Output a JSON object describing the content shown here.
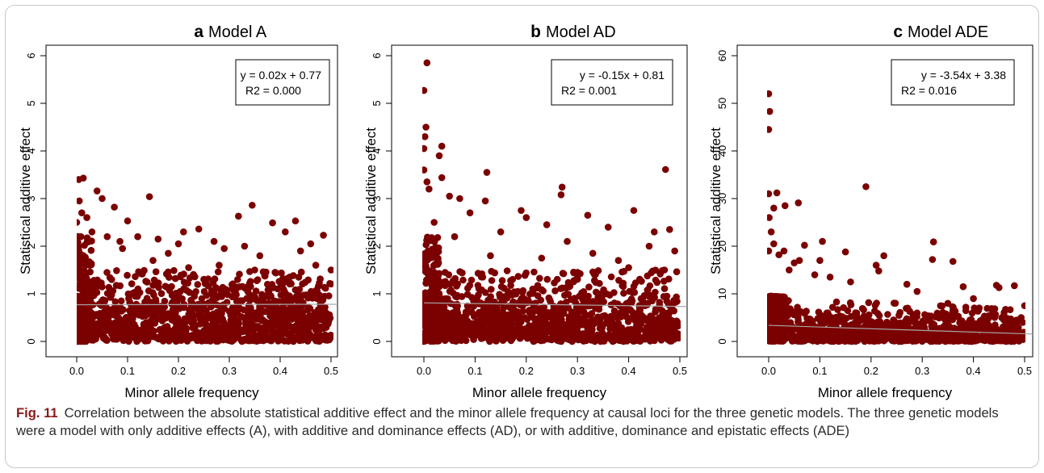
{
  "figure": {
    "caption_label": "Fig. 11",
    "caption_text": "Correlation between the absolute statistical additive effect and the minor allele frequency at causal loci for the three genetic models. The three genetic models were a model with only additive effects (A), with additive and dominance effects (AD), or with additive, dominance and epistatic effects (ADE)"
  },
  "colors": {
    "points": "#7b0000",
    "regression_line": "#a8a8a8",
    "axis": "#000000",
    "caption_label": "#8b1a1a"
  },
  "chart_data": [
    {
      "type": "scatter",
      "panel_letter": "a",
      "title": "Model A",
      "xlabel": "Minor allele frequency",
      "ylabel": "Statistical additive effect",
      "xlim": [
        0,
        0.5
      ],
      "ylim": [
        0,
        6
      ],
      "x_ticks": [
        "0.0",
        "0.1",
        "0.2",
        "0.3",
        "0.4",
        "0.5"
      ],
      "y_ticks": [
        "0",
        "1",
        "2",
        "3",
        "4",
        "5",
        "6"
      ],
      "regression": {
        "slope": 0.02,
        "intercept": 0.77
      },
      "annotation_line1": "y = 0.02x + 0.77",
      "annotation_line2": "R2 = 0.000",
      "points": [
        [
          0.004,
          3.4
        ],
        [
          0.013,
          3.43
        ],
        [
          0.04,
          3.16
        ],
        [
          0.05,
          3.0
        ],
        [
          0.143,
          3.04
        ],
        [
          0.345,
          2.86
        ],
        [
          0.318,
          2.63
        ],
        [
          0.385,
          2.49
        ],
        [
          0.43,
          2.53
        ],
        [
          0.485,
          2.23
        ],
        [
          0.46,
          2.05
        ],
        [
          0.074,
          2.82
        ],
        [
          0.1,
          2.53
        ],
        [
          0.24,
          2.36
        ],
        [
          0.27,
          2.1
        ],
        [
          0.005,
          2.95
        ],
        [
          0.01,
          2.7
        ],
        [
          0.02,
          2.6
        ],
        [
          0.0,
          2.5
        ],
        [
          0.03,
          2.3
        ],
        [
          0.06,
          2.2
        ],
        [
          0.085,
          2.1
        ],
        [
          0.12,
          2.2
        ],
        [
          0.16,
          2.15
        ],
        [
          0.2,
          2.05
        ],
        [
          0.21,
          2.3
        ],
        [
          0.29,
          1.95
        ],
        [
          0.33,
          2.0
        ],
        [
          0.41,
          2.3
        ],
        [
          0.44,
          1.9
        ],
        [
          0.36,
          1.8
        ],
        [
          0.18,
          1.85
        ],
        [
          0.09,
          1.95
        ],
        [
          0.15,
          1.7
        ],
        [
          0.28,
          1.6
        ],
        [
          0.35,
          1.5
        ],
        [
          0.47,
          1.6
        ],
        [
          0.5,
          1.5
        ],
        [
          0.39,
          1.45
        ],
        [
          0.22,
          1.55
        ]
      ]
    },
    {
      "type": "scatter",
      "panel_letter": "b",
      "title": "Model AD",
      "xlabel": "Minor allele frequency",
      "ylabel": "Statistical additive effect",
      "xlim": [
        0,
        0.5
      ],
      "ylim": [
        0,
        6
      ],
      "x_ticks": [
        "0.0",
        "0.1",
        "0.2",
        "0.3",
        "0.4",
        "0.5"
      ],
      "y_ticks": [
        "0",
        "1",
        "2",
        "3",
        "4",
        "5",
        "6"
      ],
      "regression": {
        "slope": -0.15,
        "intercept": 0.81
      },
      "annotation_line1": "y = -0.15x + 0.81",
      "annotation_line2": "R2 = 0.001",
      "points": [
        [
          0.006,
          5.85
        ],
        [
          0.0,
          5.27
        ],
        [
          0.004,
          4.5
        ],
        [
          0.002,
          4.3
        ],
        [
          0.0,
          4.05
        ],
        [
          0.035,
          4.1
        ],
        [
          0.03,
          3.9
        ],
        [
          0.472,
          3.61
        ],
        [
          0.123,
          3.55
        ],
        [
          0.27,
          3.24
        ],
        [
          0.268,
          3.08
        ],
        [
          0.035,
          3.44
        ],
        [
          0.0,
          3.6
        ],
        [
          0.006,
          3.35
        ],
        [
          0.01,
          3.2
        ],
        [
          0.05,
          3.05
        ],
        [
          0.07,
          3.0
        ],
        [
          0.12,
          2.95
        ],
        [
          0.19,
          2.75
        ],
        [
          0.32,
          2.65
        ],
        [
          0.41,
          2.75
        ],
        [
          0.48,
          2.35
        ],
        [
          0.45,
          2.3
        ],
        [
          0.36,
          2.4
        ],
        [
          0.24,
          2.45
        ],
        [
          0.2,
          2.6
        ],
        [
          0.09,
          2.7
        ],
        [
          0.15,
          2.3
        ],
        [
          0.28,
          2.1
        ],
        [
          0.44,
          2.0
        ],
        [
          0.49,
          1.9
        ],
        [
          0.33,
          1.85
        ],
        [
          0.38,
          1.7
        ],
        [
          0.13,
          1.8
        ],
        [
          0.23,
          1.75
        ],
        [
          0.06,
          2.2
        ],
        [
          0.02,
          2.5
        ],
        [
          0.47,
          1.5
        ],
        [
          0.4,
          1.55
        ],
        [
          0.3,
          1.45
        ]
      ]
    },
    {
      "type": "scatter",
      "panel_letter": "c",
      "title": "Model ADE",
      "xlabel": "Minor allele frequency",
      "ylabel": "Statistical additive effect",
      "xlim": [
        0,
        0.5
      ],
      "ylim": [
        0,
        60
      ],
      "x_ticks": [
        "0.0",
        "0.1",
        "0.2",
        "0.3",
        "0.4",
        "0.5"
      ],
      "y_ticks": [
        "0",
        "10",
        "20",
        "30",
        "40",
        "50",
        "60"
      ],
      "regression": {
        "slope": -3.54,
        "intercept": 3.38
      },
      "annotation_line1": "y = -3.54x + 3.38",
      "annotation_line2": "R2 = 0.016",
      "points": [
        [
          0.0,
          52.0
        ],
        [
          0.002,
          48.3
        ],
        [
          0.0,
          44.5
        ],
        [
          0.19,
          32.5
        ],
        [
          0.0,
          31.0
        ],
        [
          0.016,
          31.2
        ],
        [
          0.058,
          29.1
        ],
        [
          0.01,
          28.0
        ],
        [
          0.032,
          28.5
        ],
        [
          0.001,
          26.0
        ],
        [
          0.005,
          23.0
        ],
        [
          0.01,
          20.5
        ],
        [
          0.322,
          20.9
        ],
        [
          0.225,
          18.0
        ],
        [
          0.32,
          17.2
        ],
        [
          0.36,
          16.8
        ],
        [
          0.21,
          16.0
        ],
        [
          0.215,
          14.8
        ],
        [
          0.105,
          21.0
        ],
        [
          0.07,
          20.2
        ],
        [
          0.1,
          17.0
        ],
        [
          0.15,
          18.8
        ],
        [
          0.06,
          17.0
        ],
        [
          0.05,
          16.5
        ],
        [
          0.03,
          19.0
        ],
        [
          0.0,
          19.0
        ],
        [
          0.02,
          18.2
        ],
        [
          0.04,
          15.0
        ],
        [
          0.09,
          14.0
        ],
        [
          0.12,
          13.5
        ],
        [
          0.16,
          12.5
        ],
        [
          0.445,
          11.8
        ],
        [
          0.45,
          11.3
        ],
        [
          0.48,
          11.7
        ],
        [
          0.5,
          7.5
        ],
        [
          0.38,
          11.5
        ],
        [
          0.27,
          12.0
        ],
        [
          0.29,
          10.5
        ],
        [
          0.4,
          9.0
        ],
        [
          0.35,
          8.0
        ]
      ]
    }
  ]
}
